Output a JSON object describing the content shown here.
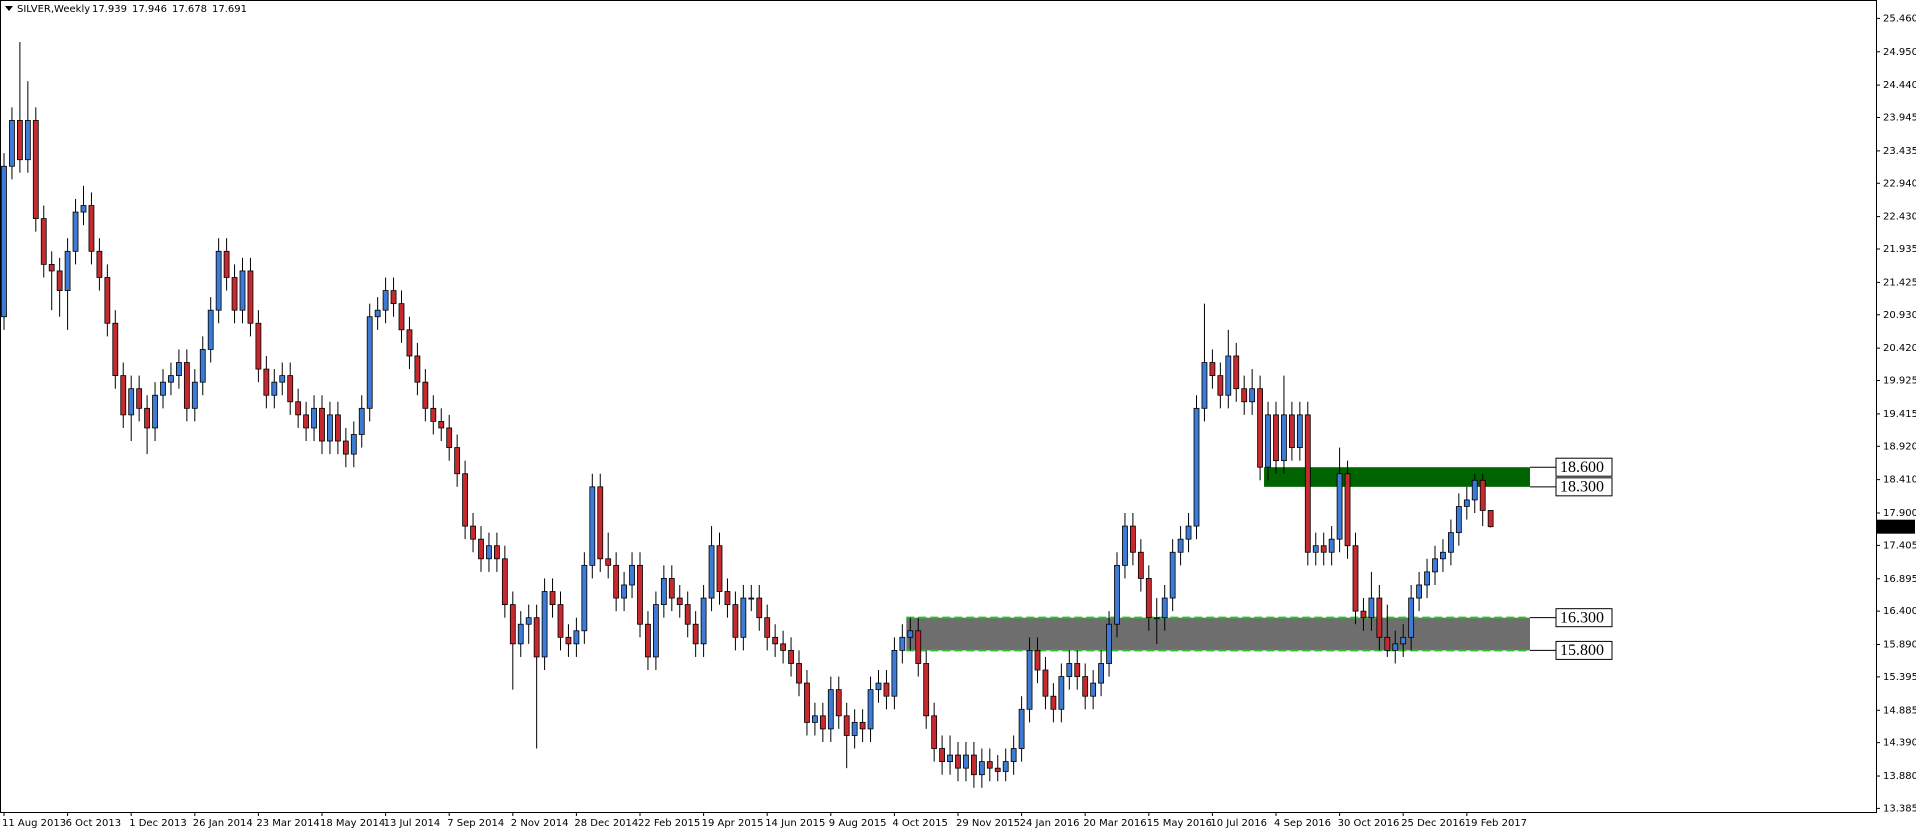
{
  "chart_data": {
    "type": "candlestick",
    "title": "SILVER,Weekly",
    "up_color": "#3d7bd6",
    "down_color": "#c62a2f",
    "ylim": [
      13.33,
      25.68
    ],
    "yticks": [
      {
        "value": 25.46,
        "label": "25.460"
      },
      {
        "value": 24.95,
        "label": "24.950"
      },
      {
        "value": 24.44,
        "label": "24.440"
      },
      23.945,
      23.435,
      {
        "value": 22.94,
        "label": "22.940"
      },
      {
        "value": 22.43,
        "label": "22.430"
      },
      21.935,
      21.425,
      {
        "value": 20.93,
        "label": "20.930"
      },
      {
        "value": 20.42,
        "label": "20.420"
      },
      19.925,
      19.415,
      {
        "value": 18.92,
        "label": "18.920"
      },
      {
        "value": 18.41,
        "label": "18.410"
      },
      {
        "value": 17.9,
        "label": "17.900"
      },
      17.405,
      16.895,
      {
        "value": 16.4,
        "label": "16.400"
      },
      {
        "value": 15.89,
        "label": "15.890"
      },
      15.395,
      14.885,
      {
        "value": 14.39,
        "label": "14.390"
      },
      {
        "value": 13.88,
        "label": "13.880"
      },
      13.385
    ],
    "zones": [
      {
        "top": {
          "value": 18.6,
          "label": "18.600"
        },
        "bottom": {
          "value": 18.3,
          "label": "18.300"
        },
        "color": "#006400"
      },
      {
        "top": {
          "value": 16.3,
          "label": "16.300"
        },
        "bottom": {
          "value": 15.8,
          "label": "15.800"
        },
        "color": "#6e6e6e",
        "border_color": "#22c322"
      }
    ],
    "categories": [
      "11 Aug 2013",
      null,
      null,
      null,
      null,
      null,
      null,
      null,
      "6 Oct 2013",
      null,
      null,
      null,
      null,
      null,
      null,
      null,
      "1 Dec 2013",
      null,
      null,
      null,
      null,
      null,
      null,
      null,
      "26 Jan 2014",
      null,
      null,
      null,
      null,
      null,
      null,
      null,
      "23 Mar 2014",
      null,
      null,
      null,
      null,
      null,
      null,
      null,
      "18 May 2014",
      null,
      null,
      null,
      null,
      null,
      null,
      null,
      "13 Jul 2014",
      null,
      null,
      null,
      null,
      null,
      null,
      null,
      "7 Sep 2014",
      null,
      null,
      null,
      null,
      null,
      null,
      null,
      "2 Nov 2014",
      null,
      null,
      null,
      null,
      null,
      null,
      null,
      "28 Dec 2014",
      null,
      null,
      null,
      null,
      null,
      null,
      null,
      "22 Feb 2015",
      null,
      null,
      null,
      null,
      null,
      null,
      null,
      "19 Apr 2015",
      null,
      null,
      null,
      null,
      null,
      null,
      null,
      "14 Jun 2015",
      null,
      null,
      null,
      null,
      null,
      null,
      null,
      "9 Aug 2015",
      null,
      null,
      null,
      null,
      null,
      null,
      null,
      "4 Oct 2015",
      null,
      null,
      null,
      null,
      null,
      null,
      null,
      "29 Nov 2015",
      null,
      null,
      null,
      null,
      null,
      null,
      null,
      "24 Jan 2016",
      null,
      null,
      null,
      null,
      null,
      null,
      null,
      "20 Mar 2016",
      null,
      null,
      null,
      null,
      null,
      null,
      null,
      "15 May 2016",
      null,
      null,
      null,
      null,
      null,
      null,
      null,
      "10 Jul 2016",
      null,
      null,
      null,
      null,
      null,
      null,
      null,
      "4 Sep 2016",
      null,
      null,
      null,
      null,
      null,
      null,
      null,
      "30 Oct 2016",
      null,
      null,
      null,
      null,
      null,
      null,
      null,
      "25 Dec 2016",
      null,
      null,
      null,
      null,
      null,
      null,
      null,
      "19 Feb 2017",
      null,
      null,
      null
    ],
    "candles": [
      [
        20.9,
        23.4,
        20.7,
        23.2
      ],
      [
        23.2,
        24.1,
        23.0,
        23.9
      ],
      [
        23.9,
        25.1,
        23.1,
        23.3
      ],
      [
        23.3,
        24.5,
        23.1,
        23.9
      ],
      [
        23.9,
        24.1,
        22.2,
        22.4
      ],
      [
        22.4,
        22.6,
        21.5,
        21.7
      ],
      [
        21.7,
        21.9,
        21.0,
        21.6
      ],
      [
        21.6,
        21.8,
        20.9,
        21.3
      ],
      [
        21.3,
        22.1,
        20.7,
        21.9
      ],
      [
        21.9,
        22.7,
        21.7,
        22.5
      ],
      [
        22.5,
        22.9,
        22.3,
        22.6
      ],
      [
        22.6,
        22.8,
        21.7,
        21.9
      ],
      [
        21.9,
        22.1,
        21.3,
        21.5
      ],
      [
        21.5,
        21.7,
        20.6,
        20.8
      ],
      [
        20.8,
        21.0,
        19.8,
        20.0
      ],
      [
        20.0,
        20.2,
        19.2,
        19.4
      ],
      [
        19.4,
        20.0,
        19.0,
        19.8
      ],
      [
        19.8,
        20.0,
        19.3,
        19.5
      ],
      [
        19.5,
        19.7,
        18.8,
        19.2
      ],
      [
        19.2,
        19.9,
        19.0,
        19.7
      ],
      [
        19.7,
        20.1,
        19.5,
        19.9
      ],
      [
        19.9,
        20.2,
        19.7,
        20.0
      ],
      [
        20.0,
        20.4,
        19.8,
        20.2
      ],
      [
        20.2,
        20.4,
        19.3,
        19.5
      ],
      [
        19.5,
        20.1,
        19.3,
        19.9
      ],
      [
        19.9,
        20.6,
        19.7,
        20.4
      ],
      [
        20.4,
        21.2,
        20.2,
        21.0
      ],
      [
        21.0,
        22.1,
        20.8,
        21.9
      ],
      [
        21.9,
        22.1,
        21.3,
        21.5
      ],
      [
        21.5,
        21.7,
        20.8,
        21.0
      ],
      [
        21.0,
        21.8,
        20.8,
        21.6
      ],
      [
        21.6,
        21.8,
        20.6,
        20.8
      ],
      [
        20.8,
        21.0,
        19.9,
        20.1
      ],
      [
        20.1,
        20.3,
        19.5,
        19.7
      ],
      [
        19.7,
        20.1,
        19.5,
        19.9
      ],
      [
        19.9,
        20.2,
        19.7,
        20.0
      ],
      [
        20.0,
        20.2,
        19.4,
        19.6
      ],
      [
        19.6,
        19.8,
        19.2,
        19.4
      ],
      [
        19.4,
        19.6,
        19.0,
        19.2
      ],
      [
        19.2,
        19.7,
        19.0,
        19.5
      ],
      [
        19.5,
        19.7,
        18.8,
        19.0
      ],
      [
        19.0,
        19.6,
        18.8,
        19.4
      ],
      [
        19.4,
        19.6,
        18.8,
        19.0
      ],
      [
        19.0,
        19.2,
        18.6,
        18.8
      ],
      [
        18.8,
        19.3,
        18.6,
        19.1
      ],
      [
        19.1,
        19.7,
        18.9,
        19.5
      ],
      [
        19.5,
        21.1,
        19.3,
        20.9
      ],
      [
        20.9,
        21.2,
        20.7,
        21.0
      ],
      [
        21.0,
        21.5,
        20.8,
        21.3
      ],
      [
        21.3,
        21.5,
        20.9,
        21.1
      ],
      [
        21.1,
        21.3,
        20.5,
        20.7
      ],
      [
        20.7,
        20.9,
        20.1,
        20.3
      ],
      [
        20.3,
        20.5,
        19.7,
        19.9
      ],
      [
        19.9,
        20.1,
        19.3,
        19.5
      ],
      [
        19.5,
        19.7,
        19.1,
        19.3
      ],
      [
        19.3,
        19.5,
        19.0,
        19.2
      ],
      [
        19.2,
        19.4,
        18.7,
        18.9
      ],
      [
        18.9,
        19.1,
        18.3,
        18.5
      ],
      [
        18.5,
        18.7,
        17.5,
        17.7
      ],
      [
        17.7,
        17.9,
        17.3,
        17.5
      ],
      [
        17.5,
        17.7,
        17.0,
        17.2
      ],
      [
        17.2,
        17.6,
        17.0,
        17.4
      ],
      [
        17.4,
        17.6,
        17.0,
        17.2
      ],
      [
        17.2,
        17.4,
        16.3,
        16.5
      ],
      [
        16.5,
        16.7,
        15.2,
        15.9
      ],
      [
        15.9,
        16.4,
        15.7,
        16.2
      ],
      [
        16.2,
        16.5,
        15.9,
        16.3
      ],
      [
        16.3,
        16.5,
        14.3,
        15.7
      ],
      [
        15.7,
        16.9,
        15.5,
        16.7
      ],
      [
        16.7,
        16.9,
        16.3,
        16.5
      ],
      [
        16.5,
        16.7,
        15.8,
        16.0
      ],
      [
        16.0,
        16.2,
        15.7,
        15.9
      ],
      [
        15.9,
        16.3,
        15.7,
        16.1
      ],
      [
        16.1,
        17.3,
        15.9,
        17.1
      ],
      [
        17.1,
        18.5,
        16.9,
        18.3
      ],
      [
        18.3,
        18.5,
        17.0,
        17.2
      ],
      [
        17.2,
        17.6,
        16.9,
        17.1
      ],
      [
        17.1,
        17.3,
        16.4,
        16.6
      ],
      [
        16.6,
        17.0,
        16.4,
        16.8
      ],
      [
        16.8,
        17.3,
        16.6,
        17.1
      ],
      [
        17.1,
        17.3,
        16.0,
        16.2
      ],
      [
        16.2,
        16.4,
        15.5,
        15.7
      ],
      [
        15.7,
        16.7,
        15.5,
        16.5
      ],
      [
        16.5,
        17.1,
        16.3,
        16.9
      ],
      [
        16.9,
        17.1,
        16.4,
        16.6
      ],
      [
        16.6,
        16.8,
        16.3,
        16.5
      ],
      [
        16.5,
        16.7,
        16.0,
        16.2
      ],
      [
        16.2,
        16.4,
        15.7,
        15.9
      ],
      [
        15.9,
        16.8,
        15.7,
        16.6
      ],
      [
        16.6,
        17.7,
        16.4,
        17.4
      ],
      [
        17.4,
        17.6,
        16.5,
        16.7
      ],
      [
        16.7,
        16.9,
        16.3,
        16.5
      ],
      [
        16.5,
        16.7,
        15.8,
        16.0
      ],
      [
        16.0,
        16.8,
        15.8,
        16.6
      ],
      [
        16.6,
        16.8,
        16.4,
        16.6
      ],
      [
        16.6,
        16.8,
        16.1,
        16.3
      ],
      [
        16.3,
        16.5,
        15.8,
        16.0
      ],
      [
        16.0,
        16.2,
        15.7,
        15.9
      ],
      [
        15.9,
        16.1,
        15.6,
        15.8
      ],
      [
        15.8,
        16.0,
        15.4,
        15.6
      ],
      [
        15.6,
        15.8,
        15.1,
        15.3
      ],
      [
        15.3,
        15.5,
        14.5,
        14.7
      ],
      [
        14.7,
        15.0,
        14.5,
        14.8
      ],
      [
        14.8,
        15.0,
        14.4,
        14.6
      ],
      [
        14.6,
        15.4,
        14.4,
        15.2
      ],
      [
        15.2,
        15.4,
        14.6,
        14.8
      ],
      [
        14.8,
        15.0,
        14.0,
        14.5
      ],
      [
        14.5,
        14.9,
        14.3,
        14.7
      ],
      [
        14.7,
        14.9,
        14.4,
        14.6
      ],
      [
        14.6,
        15.4,
        14.4,
        15.2
      ],
      [
        15.2,
        15.5,
        15.0,
        15.3
      ],
      [
        15.3,
        15.5,
        14.9,
        15.1
      ],
      [
        15.1,
        16.0,
        14.9,
        15.8
      ],
      [
        15.8,
        16.2,
        15.6,
        16.0
      ],
      [
        16.0,
        16.3,
        15.8,
        16.1
      ],
      [
        16.1,
        16.3,
        15.4,
        15.6
      ],
      [
        15.6,
        15.8,
        14.6,
        14.8
      ],
      [
        14.8,
        15.0,
        14.1,
        14.3
      ],
      [
        14.3,
        14.5,
        13.9,
        14.1
      ],
      [
        14.1,
        14.5,
        13.9,
        14.2
      ],
      [
        14.2,
        14.4,
        13.8,
        14.0
      ],
      [
        14.0,
        14.4,
        13.8,
        14.2
      ],
      [
        14.2,
        14.4,
        13.7,
        13.9
      ],
      [
        13.9,
        14.3,
        13.7,
        14.1
      ],
      [
        14.1,
        14.3,
        13.8,
        14.0
      ],
      [
        14.0,
        14.2,
        13.8,
        13.95
      ],
      [
        13.95,
        14.3,
        13.8,
        14.1
      ],
      [
        14.1,
        14.5,
        13.9,
        14.3
      ],
      [
        14.3,
        15.1,
        14.1,
        14.9
      ],
      [
        14.9,
        16.0,
        14.7,
        15.8
      ],
      [
        15.8,
        16.0,
        15.3,
        15.5
      ],
      [
        15.5,
        15.7,
        14.9,
        15.1
      ],
      [
        15.1,
        15.3,
        14.7,
        14.9
      ],
      [
        14.9,
        15.6,
        14.7,
        15.4
      ],
      [
        15.4,
        15.8,
        15.2,
        15.6
      ],
      [
        15.6,
        15.8,
        15.2,
        15.4
      ],
      [
        15.4,
        15.6,
        14.9,
        15.1
      ],
      [
        15.1,
        15.5,
        14.9,
        15.3
      ],
      [
        15.3,
        15.8,
        15.1,
        15.6
      ],
      [
        15.6,
        16.4,
        15.4,
        16.2
      ],
      [
        16.2,
        17.3,
        16.0,
        17.1
      ],
      [
        17.1,
        17.9,
        16.9,
        17.7
      ],
      [
        17.7,
        17.9,
        17.1,
        17.3
      ],
      [
        17.3,
        17.5,
        16.7,
        16.9
      ],
      [
        16.9,
        17.1,
        16.1,
        16.3
      ],
      [
        16.3,
        16.6,
        15.9,
        16.3
      ],
      [
        16.3,
        16.8,
        16.1,
        16.6
      ],
      [
        16.6,
        17.5,
        16.4,
        17.3
      ],
      [
        17.3,
        17.7,
        17.1,
        17.5
      ],
      [
        17.5,
        17.9,
        17.3,
        17.7
      ],
      [
        17.7,
        19.7,
        17.5,
        19.5
      ],
      [
        19.5,
        21.1,
        19.3,
        20.2
      ],
      [
        20.2,
        20.4,
        19.8,
        20.0
      ],
      [
        20.0,
        20.2,
        19.5,
        19.7
      ],
      [
        19.7,
        20.7,
        19.5,
        20.3
      ],
      [
        20.3,
        20.5,
        19.6,
        19.8
      ],
      [
        19.8,
        20.0,
        19.4,
        19.6
      ],
      [
        19.6,
        20.1,
        19.4,
        19.8
      ],
      [
        19.8,
        20.0,
        18.4,
        18.6
      ],
      [
        18.6,
        19.6,
        18.4,
        19.4
      ],
      [
        19.4,
        19.6,
        18.5,
        18.7
      ],
      [
        18.7,
        20.0,
        18.5,
        19.4
      ],
      [
        19.4,
        19.6,
        18.7,
        18.9
      ],
      [
        18.9,
        19.6,
        18.7,
        19.4
      ],
      [
        19.4,
        19.6,
        17.1,
        17.3
      ],
      [
        17.3,
        17.6,
        17.1,
        17.4
      ],
      [
        17.4,
        17.6,
        17.1,
        17.3
      ],
      [
        17.3,
        17.7,
        17.1,
        17.5
      ],
      [
        17.5,
        18.9,
        17.3,
        18.5
      ],
      [
        18.5,
        18.7,
        17.2,
        17.4
      ],
      [
        17.4,
        17.6,
        16.2,
        16.4
      ],
      [
        16.4,
        16.6,
        16.1,
        16.3
      ],
      [
        16.3,
        17.0,
        16.1,
        16.6
      ],
      [
        16.6,
        16.8,
        15.8,
        16.0
      ],
      [
        16.0,
        16.5,
        15.7,
        15.8
      ],
      [
        15.8,
        16.1,
        15.6,
        15.9
      ],
      [
        15.9,
        16.2,
        15.7,
        16.0
      ],
      [
        16.0,
        16.8,
        15.8,
        16.6
      ],
      [
        16.6,
        17.0,
        16.4,
        16.8
      ],
      [
        16.8,
        17.2,
        16.6,
        17.0
      ],
      [
        17.0,
        17.4,
        16.8,
        17.2
      ],
      [
        17.2,
        17.5,
        17.0,
        17.3
      ],
      [
        17.3,
        17.8,
        17.1,
        17.6
      ],
      [
        17.6,
        18.2,
        17.4,
        18.0
      ],
      [
        18.0,
        18.3,
        17.8,
        18.1
      ],
      [
        18.1,
        18.5,
        17.9,
        18.4
      ],
      [
        18.4,
        18.5,
        17.7,
        17.939
      ],
      [
        17.939,
        17.946,
        17.678,
        17.691
      ]
    ]
  }
}
